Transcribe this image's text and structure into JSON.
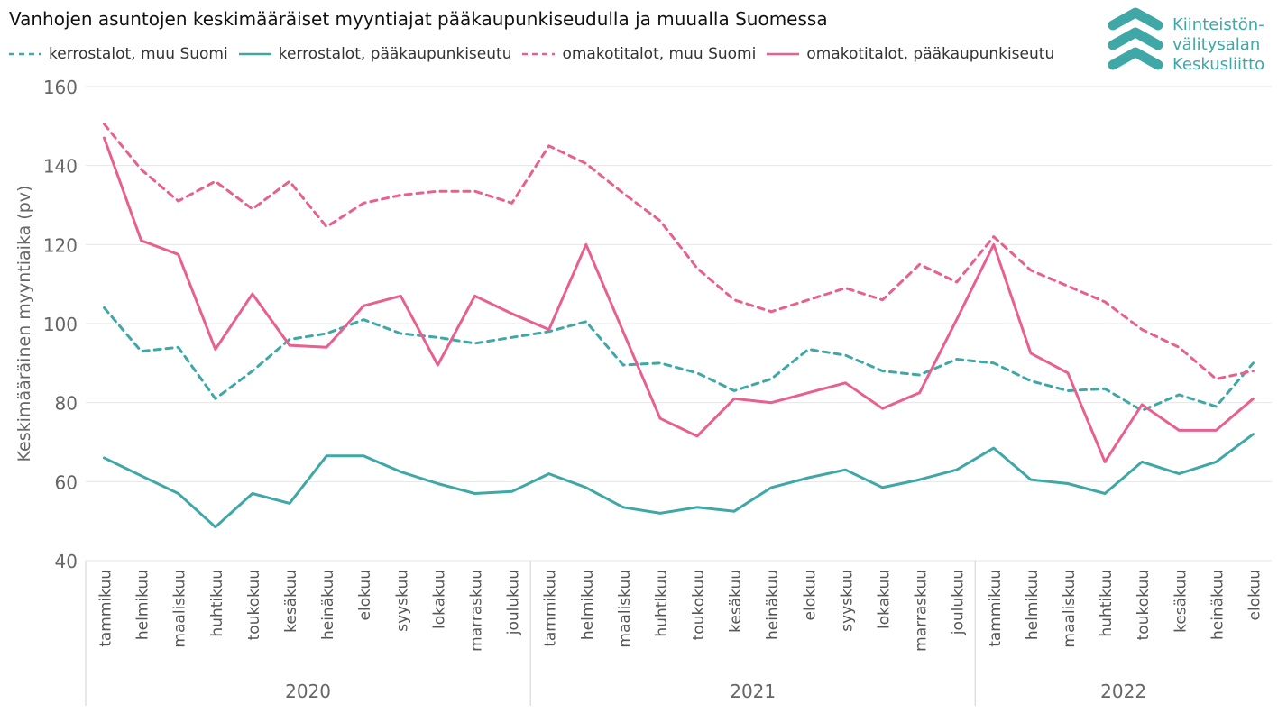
{
  "title": "Vanhojen asuntojen keskimääräiset myyntiajat pääkaupunkiseudulla ja muualla Suomessa",
  "logo": {
    "lines": [
      "Kiinteistön-",
      "välitysalan",
      "Keskusliitto"
    ],
    "color": "#3fa8a6"
  },
  "chart_data": {
    "type": "line",
    "ylabel": "Keskimääräinen myyntiaika (pv)",
    "xlabel": "",
    "ylim": [
      40,
      160
    ],
    "yticks": [
      40,
      60,
      80,
      100,
      120,
      140,
      160
    ],
    "grid": true,
    "legend_position": "top-left",
    "years": [
      {
        "label": "2020",
        "count": 12
      },
      {
        "label": "2021",
        "count": 12
      },
      {
        "label": "2022",
        "count": 8
      }
    ],
    "categories": [
      "tammikuu",
      "helmikuu",
      "maaliskuu",
      "huhtikuu",
      "toukokuu",
      "kesäkuu",
      "heinäkuu",
      "elokuu",
      "syyskuu",
      "lokakuu",
      "marraskuu",
      "joulukuu",
      "tammikuu",
      "helmikuu",
      "maaliskuu",
      "huhtikuu",
      "toukokuu",
      "kesäkuu",
      "heinäkuu",
      "elokuu",
      "syyskuu",
      "lokakuu",
      "marraskuu",
      "joulukuu",
      "tammikuu",
      "helmikuu",
      "maaliskuu",
      "huhtikuu",
      "toukokuu",
      "kesäkuu",
      "heinäkuu",
      "elokuu"
    ],
    "series": [
      {
        "name": "kerrostalot, muu Suomi",
        "color": "#3fa8a6",
        "dashed": true,
        "values": [
          104,
          93,
          94,
          81,
          88,
          96,
          97.5,
          101,
          97.5,
          96.5,
          95,
          96.5,
          98,
          100.5,
          89.5,
          90,
          87.5,
          83,
          86,
          93.5,
          92,
          88,
          87,
          91,
          90,
          85.5,
          83,
          83.5,
          78,
          82,
          79,
          90
        ]
      },
      {
        "name": "kerrostalot, pääkaupunkiseutu",
        "color": "#3fa8a6",
        "dashed": false,
        "values": [
          66,
          61.5,
          57,
          48.5,
          57,
          54.5,
          66.5,
          66.5,
          62.5,
          59.5,
          57,
          57.5,
          62,
          58.5,
          53.5,
          52,
          53.5,
          52.5,
          58.5,
          61,
          63,
          58.5,
          60.5,
          63,
          68.5,
          60.5,
          59.5,
          57,
          65,
          62,
          65,
          72
        ]
      },
      {
        "name": "omakotitalot, muu Suomi",
        "color": "#e8608f",
        "dashed": true,
        "values": [
          150.5,
          139,
          131,
          136,
          129,
          136,
          124.5,
          130.5,
          132.5,
          133.5,
          133.5,
          130.5,
          145,
          140.5,
          133,
          126,
          114,
          106,
          103,
          106,
          109,
          106,
          115,
          110.5,
          122,
          113.5,
          109.5,
          105.5,
          98.5,
          94,
          86,
          88
        ]
      },
      {
        "name": "omakotitalot, pääkaupunkiseutu",
        "color": "#e8608f",
        "dashed": false,
        "values": [
          147,
          121,
          117.5,
          93.5,
          107.5,
          94.5,
          94,
          104.5,
          107,
          89.5,
          107,
          102.5,
          98.5,
          120,
          98,
          76,
          71.5,
          81,
          80,
          82.5,
          85,
          78.5,
          82.5,
          101,
          120,
          92.5,
          87.5,
          65,
          79.5,
          73,
          73,
          81
        ]
      }
    ]
  }
}
